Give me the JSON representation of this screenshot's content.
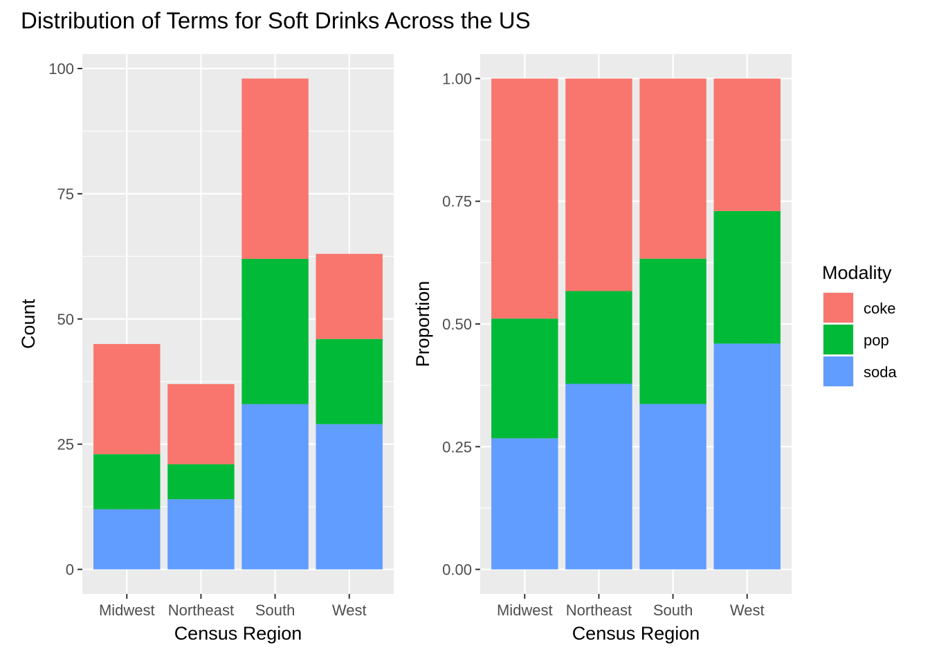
{
  "title": "Distribution of Terms for Soft Drinks Across the US",
  "legend": {
    "title": "Modality",
    "entries": [
      {
        "label": "coke",
        "color": "#F8766D"
      },
      {
        "label": "pop",
        "color": "#00BA38"
      },
      {
        "label": "soda",
        "color": "#619CFF"
      }
    ]
  },
  "chart_data": [
    {
      "type": "bar",
      "stacked": true,
      "categories": [
        "Midwest",
        "Northeast",
        "South",
        "West"
      ],
      "series": [
        {
          "name": "soda",
          "values": [
            12,
            14,
            33,
            29
          ]
        },
        {
          "name": "pop",
          "values": [
            11,
            7,
            29,
            17
          ]
        },
        {
          "name": "coke",
          "values": [
            22,
            16,
            36,
            17
          ]
        }
      ],
      "xlabel": "Census Region",
      "ylabel": "Count",
      "ylim": [
        -4.9,
        102.9
      ],
      "yticks": [
        0,
        25,
        50,
        75,
        100
      ],
      "ytick_labels": [
        "0",
        "25",
        "50",
        "75",
        "100"
      ],
      "grid": true,
      "legend": "right"
    },
    {
      "type": "bar",
      "stacked": true,
      "categories": [
        "Midwest",
        "Northeast",
        "South",
        "West"
      ],
      "series": [
        {
          "name": "soda",
          "values": [
            0.267,
            0.378,
            0.337,
            0.46
          ]
        },
        {
          "name": "pop",
          "values": [
            0.244,
            0.189,
            0.296,
            0.27
          ]
        },
        {
          "name": "coke",
          "values": [
            0.489,
            0.433,
            0.367,
            0.27
          ]
        }
      ],
      "xlabel": "Census Region",
      "ylabel": "Proportion",
      "ylim": [
        -0.05,
        1.05
      ],
      "yticks": [
        0,
        0.25,
        0.5,
        0.75,
        1
      ],
      "ytick_labels": [
        "0.00",
        "0.25",
        "0.50",
        "0.75",
        "1.00"
      ],
      "grid": true,
      "legend": "right"
    }
  ]
}
